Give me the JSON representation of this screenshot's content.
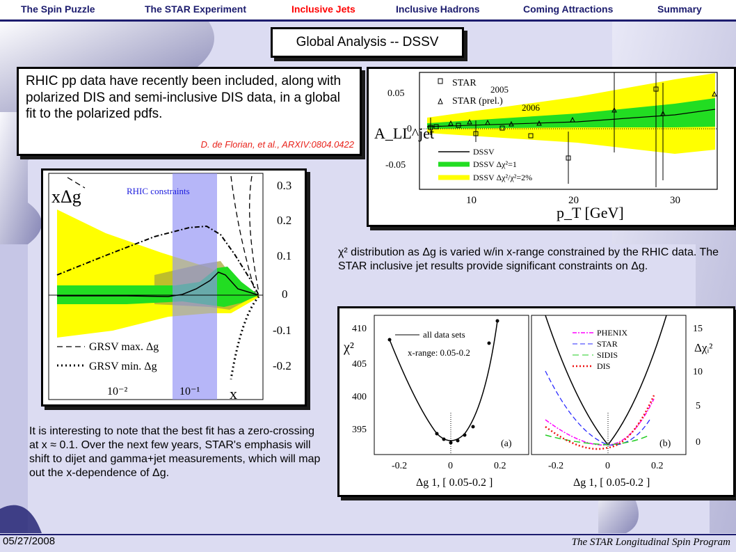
{
  "nav": {
    "items": [
      "The Spin Puzzle",
      "The STAR Experiment",
      "Inclusive Jets",
      "Inclusive Hadrons",
      "Coming Attractions",
      "Summary"
    ],
    "active_index": 2
  },
  "title": "Global Analysis -- DSSV",
  "summary": {
    "text": "RHIC pp data have recently been included, along with polarized DIS and semi-inclusive DIS data, in a global fit to the polarized pdfs.",
    "citation": "D. de Florian, et al., ARXIV:0804.0422"
  },
  "fig_all": {
    "legend": [
      "STAR",
      "2005",
      "STAR (prel.)",
      "2006",
      "DSSV",
      "DSSV Δχ²=1",
      "DSSV Δχ²/χ²=2%"
    ],
    "ylabel": "A_LL^jet",
    "xlabel": "p_T [GeV]",
    "yticks": [
      "0.05",
      "0",
      "-0.05"
    ],
    "xticks": [
      "10",
      "20",
      "30"
    ]
  },
  "fig_dg": {
    "ylabel": "xΔg",
    "band_label": "RHIC constraints",
    "legend": [
      "GRSV max. Δg",
      "GRSV min. Δg"
    ],
    "yticks": [
      "0.3",
      "0.2",
      "0.1",
      "0",
      "-0.1",
      "-0.2"
    ],
    "xticks": [
      "10⁻²",
      "10⁻¹"
    ],
    "xlabel": "x"
  },
  "caption_chi": "χ² distribution as Δg is varied w/in x-range constrained by the RHIC data.  The STAR inclusive jet results provide significant constraints on Δg.",
  "fig_chi": {
    "a": {
      "legend": "all data sets",
      "range": "x-range: 0.05-0.2",
      "yticks": [
        "410",
        "405",
        "400",
        "395"
      ],
      "ylabel": "χ²",
      "xticks": [
        "-0.2",
        "0",
        "0.2"
      ],
      "tag": "(a)",
      "xlabel": "Δg 1, [ 0.05-0.2 ]"
    },
    "b": {
      "legend": [
        "PHENIX",
        "STAR",
        "SIDIS",
        "DIS"
      ],
      "yticks": [
        "15",
        "10",
        "5",
        "0"
      ],
      "ylabel": "Δχᵢ²",
      "xticks": [
        "-0.2",
        "0",
        "0.2"
      ],
      "tag": "(b)",
      "xlabel": "Δg 1, [ 0.05-0.2 ]"
    }
  },
  "caption_note": "It is interesting to note that the best fit has a zero-crossing at x ≈ 0.1.  Over the next few years, STAR's emphasis will shift to dijet and gamma+jet measurements, which will map out the x-dependence of Δg.",
  "footer": {
    "date": "05/27/2008",
    "program": "The STAR Longitudinal Spin Program"
  },
  "colors": {
    "nav": "#1c1c6e",
    "active": "#ff0000",
    "citation": "#e8231b",
    "rhic_band": "#9a9af0",
    "yellow": "#ffff00",
    "green": "#22dd22"
  }
}
